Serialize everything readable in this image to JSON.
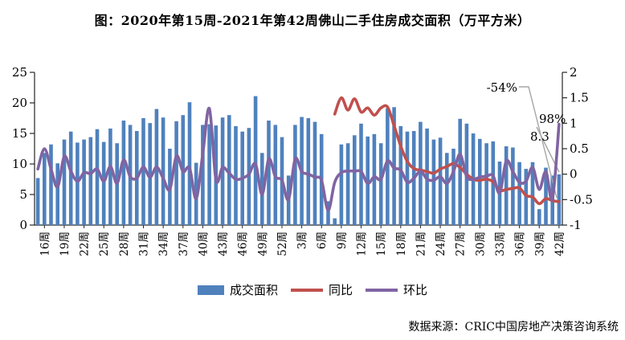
{
  "title": "图：2020年第15周-2021年第42周佛山二手住房成交面积（万平方米）",
  "source": "数据来源：CRIC中国房地产决策咨询系统",
  "colors": {
    "bar": "#4F81BD",
    "yoy_line": "#C0504D",
    "wow_line": "#8064A2",
    "leader": "#A6A6A6",
    "axis": "#262626"
  },
  "legend": [
    {
      "label": "成交面积",
      "type": "bar",
      "color": "#4F81BD"
    },
    {
      "label": "同比",
      "type": "line",
      "color": "#C0504D"
    },
    {
      "label": "环比",
      "type": "line",
      "color": "#8064A2"
    }
  ],
  "annotations": [
    {
      "id": "yoy-end",
      "label": "-54%"
    },
    {
      "id": "wow-end",
      "label": "98%"
    },
    {
      "id": "bar-end",
      "label": "8.3"
    }
  ],
  "chart_data": {
    "type": "bar",
    "subtype": "bar-with-two-lines",
    "title": "图：2020年第15周-2021年第42周佛山二手住房成交面积（万平方米）",
    "xlabel": "",
    "ylabel_left": "",
    "ylabel_right": "",
    "grid": false,
    "legend_position": "bottom",
    "left_axis": {
      "min": 0,
      "max": 25,
      "ticks": [
        0,
        5,
        10,
        15,
        20,
        25
      ]
    },
    "right_axis": {
      "min": -1,
      "max": 2,
      "ticks": [
        -1,
        -0.5,
        0,
        0.5,
        1,
        1.5,
        2
      ]
    },
    "x_tick_labels": [
      "16周",
      "19周",
      "22周",
      "25周",
      "28周",
      "31周",
      "34周",
      "37周",
      "40周",
      "43周",
      "46周",
      "49周",
      "52周",
      "3周",
      "6周",
      "9周",
      "12周",
      "15周",
      "18周",
      "21周",
      "24周",
      "27周",
      "30周",
      "33周",
      "36周",
      "39周",
      "42周"
    ],
    "categories": [
      "15周",
      "16周",
      "17周",
      "18周",
      "19周",
      "20周",
      "21周",
      "22周",
      "23周",
      "24周",
      "25周",
      "26周",
      "27周",
      "28周",
      "29周",
      "30周",
      "31周",
      "32周",
      "33周",
      "34周",
      "35周",
      "36周",
      "37周",
      "38周",
      "39周",
      "40周",
      "41周",
      "42周",
      "43周",
      "44周",
      "45周",
      "46周",
      "47周",
      "48周",
      "49周",
      "50周",
      "51周",
      "52周",
      "1周",
      "2周",
      "3周",
      "4周",
      "5周",
      "6周",
      "7周",
      "8周",
      "9周",
      "10周",
      "11周",
      "12周",
      "13周",
      "14周",
      "15周",
      "16周",
      "17周",
      "18周",
      "19周",
      "20周",
      "21周",
      "22周",
      "23周",
      "24周",
      "25周",
      "26周",
      "27周",
      "28周",
      "29周",
      "30周",
      "31周",
      "32周",
      "33周",
      "34周",
      "35周",
      "36周",
      "37周",
      "38周",
      "39周",
      "40周",
      "41周",
      "42周"
    ],
    "series": [
      {
        "name": "成交面积",
        "type": "bar",
        "axis": "left",
        "color": "#4F81BD",
        "values": [
          7.7,
          11.8,
          13.2,
          10.1,
          14.0,
          15.3,
          13.5,
          14.0,
          14.4,
          15.7,
          13.6,
          15.8,
          13.4,
          17.1,
          16.4,
          15.4,
          17.5,
          16.7,
          19.0,
          17.6,
          12.5,
          17.0,
          18.0,
          20.1,
          10.2,
          16.4,
          16.5,
          16.3,
          17.6,
          18.0,
          16.2,
          15.3,
          15.9,
          21.1,
          11.8,
          17.1,
          16.4,
          14.4,
          8.1,
          16.4,
          17.7,
          17.5,
          16.9,
          14.9,
          3.9,
          1.1,
          13.2,
          13.4,
          14.7,
          16.6,
          14.5,
          14.9,
          13.4,
          19.1,
          19.3,
          16.2,
          15.3,
          15.4,
          16.9,
          15.8,
          14.0,
          14.3,
          11.8,
          12.5,
          17.4,
          16.6,
          15.0,
          14.1,
          13.4,
          13.7,
          10.4,
          12.9,
          12.7,
          10.3,
          9.2,
          10.3,
          2.6,
          9.4,
          8.1,
          8.3
        ]
      },
      {
        "name": "同比",
        "type": "line",
        "axis": "right",
        "color": "#C0504D",
        "values": [
          null,
          null,
          null,
          null,
          null,
          null,
          null,
          null,
          null,
          null,
          null,
          null,
          null,
          null,
          null,
          null,
          null,
          null,
          null,
          null,
          null,
          null,
          null,
          null,
          null,
          null,
          null,
          null,
          null,
          null,
          null,
          null,
          null,
          null,
          null,
          null,
          null,
          null,
          null,
          null,
          null,
          null,
          null,
          null,
          null,
          1.18,
          1.5,
          1.26,
          1.48,
          1.22,
          1.3,
          1.16,
          1.3,
          1.32,
          0.95,
          0.55,
          0.25,
          0.11,
          0.08,
          0.05,
          0.02,
          0.1,
          0.15,
          0.21,
          0.13,
          0.0,
          -0.1,
          -0.12,
          -0.1,
          -0.15,
          -0.32,
          -0.3,
          -0.28,
          -0.27,
          -0.42,
          -0.45,
          -0.58,
          -0.48,
          -0.52,
          -0.54
        ]
      },
      {
        "name": "环比",
        "type": "line",
        "axis": "right",
        "color": "#8064A2",
        "values": [
          0.1,
          0.5,
          0.1,
          -0.25,
          0.35,
          0.06,
          -0.14,
          0.03,
          0.01,
          0.1,
          -0.14,
          0.15,
          -0.18,
          0.28,
          -0.05,
          -0.08,
          0.14,
          -0.06,
          0.14,
          -0.08,
          -0.3,
          0.36,
          0.05,
          0.12,
          -0.48,
          0.4,
          1.29,
          -0.11,
          0.13,
          0.02,
          -0.1,
          -0.08,
          0.0,
          0.2,
          -0.4,
          0.3,
          -0.05,
          -0.12,
          -0.5,
          0.3,
          0.05,
          0.0,
          -0.06,
          -0.12,
          -0.71,
          -0.16,
          0.03,
          0.06,
          0.06,
          0.05,
          -0.18,
          -0.05,
          -0.1,
          0.26,
          0.12,
          0.08,
          -0.16,
          -0.08,
          0.06,
          -0.1,
          -0.12,
          -0.05,
          -0.18,
          0.05,
          0.39,
          -0.05,
          -0.1,
          -0.06,
          -0.04,
          -0.03,
          -0.37,
          0.26,
          0.05,
          -0.16,
          -0.14,
          0.13,
          -0.3,
          0.05,
          -0.48,
          0.98
        ]
      }
    ],
    "annotations": [
      {
        "target": "同比 last point",
        "text": "-54%"
      },
      {
        "target": "环比 last point",
        "text": "98%"
      },
      {
        "target": "成交面积 last bar",
        "text": "8.3"
      }
    ]
  }
}
